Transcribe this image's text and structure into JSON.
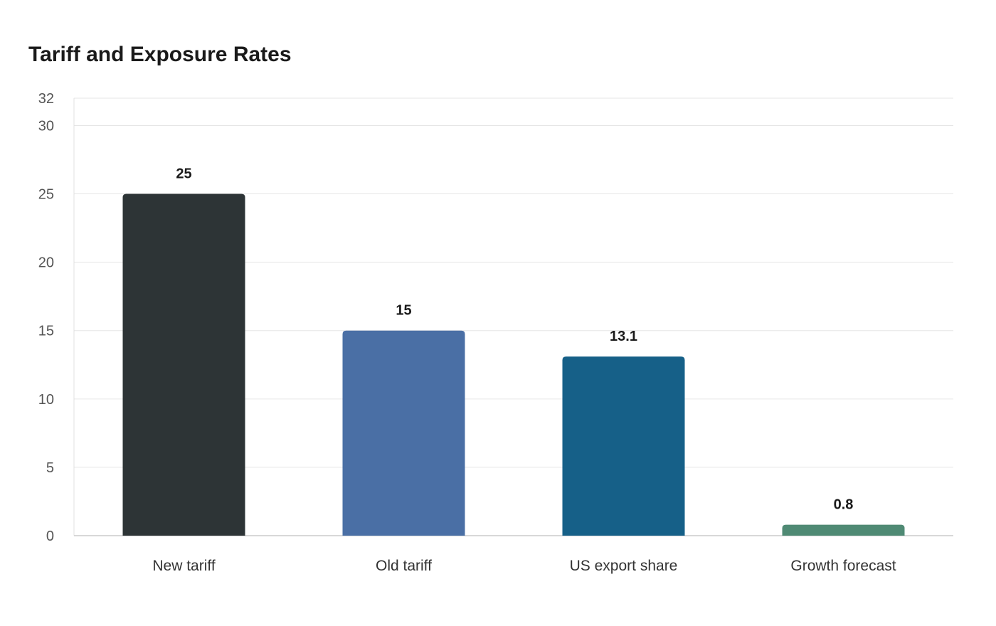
{
  "chart_data": {
    "type": "bar",
    "title": "Tariff and Exposure Rates",
    "xlabel": "",
    "ylabel": "",
    "categories": [
      "New tariff",
      "Old tariff",
      "US export share",
      "Growth forecast"
    ],
    "values": [
      25,
      15,
      13.1,
      0.8
    ],
    "value_labels": [
      "25",
      "15",
      "13.1",
      "0.8"
    ],
    "colors": [
      "#2d3436",
      "#4a6fa5",
      "#166088",
      "#4f8a74"
    ],
    "ylim": [
      0,
      32
    ],
    "yticks": [
      0,
      5,
      10,
      15,
      20,
      25,
      30,
      32
    ],
    "grid": true,
    "legend": "none"
  }
}
